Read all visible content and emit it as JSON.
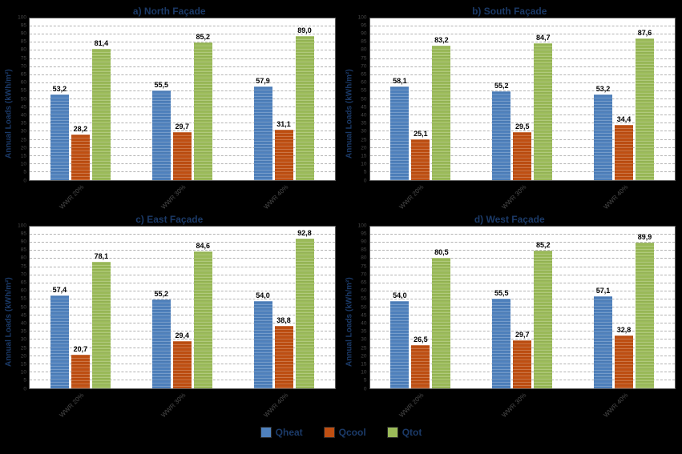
{
  "page": {
    "background": "#000000"
  },
  "colors": {
    "qheat": "#4f81bd",
    "qcool": "#bf4f12",
    "qtot": "#9bbb59",
    "title_text": "#1b3a68",
    "tick_text": "#4a4a4a"
  },
  "legend": {
    "items": [
      {
        "label": "Qheat",
        "color": "#4f81bd"
      },
      {
        "label": "Qcool",
        "color": "#bf4f12"
      },
      {
        "label": "Qtot",
        "color": "#9bbb59"
      }
    ]
  },
  "chart_data": [
    {
      "type": "bar",
      "title": "a) North Façade",
      "ylabel": "Annual Loads (kWh/m²)",
      "xlabel": "",
      "ylim": [
        0,
        100
      ],
      "ytick_step": 5,
      "grid": true,
      "categories": [
        "WWR 20%",
        "WWR 30%",
        "WWR 40%"
      ],
      "series": [
        {
          "name": "Qheat",
          "values": [
            53.2,
            55.5,
            57.9
          ]
        },
        {
          "name": "Qcool",
          "values": [
            28.2,
            29.7,
            31.1
          ]
        },
        {
          "name": "Qtot",
          "values": [
            81.4,
            85.2,
            89.0
          ]
        }
      ]
    },
    {
      "type": "bar",
      "title": "b) South Façade",
      "ylabel": "Annual Loads (kWh/m²)",
      "xlabel": "",
      "ylim": [
        0,
        100
      ],
      "ytick_step": 5,
      "grid": true,
      "categories": [
        "WWR 20%",
        "WWR 30%",
        "WWR 40%"
      ],
      "series": [
        {
          "name": "Qheat",
          "values": [
            58.1,
            55.2,
            53.2
          ]
        },
        {
          "name": "Qcool",
          "values": [
            25.1,
            29.5,
            34.4
          ]
        },
        {
          "name": "Qtot",
          "values": [
            83.2,
            84.7,
            87.6
          ]
        }
      ]
    },
    {
      "type": "bar",
      "title": "c) East Façade",
      "ylabel": "Annual Loads (kWh/m²)",
      "xlabel": "",
      "ylim": [
        0,
        100
      ],
      "ytick_step": 5,
      "grid": true,
      "categories": [
        "WWR 20%",
        "WWR 30%",
        "WWR 40%"
      ],
      "series": [
        {
          "name": "Qheat",
          "values": [
            57.4,
            55.2,
            54.0
          ]
        },
        {
          "name": "Qcool",
          "values": [
            20.7,
            29.4,
            38.8
          ]
        },
        {
          "name": "Qtot",
          "values": [
            78.1,
            84.6,
            92.8
          ]
        }
      ]
    },
    {
      "type": "bar",
      "title": "d) West Façade",
      "ylabel": "Annual Loads (kWh/m²)",
      "xlabel": "",
      "ylim": [
        0,
        100
      ],
      "ytick_step": 5,
      "grid": true,
      "categories": [
        "WWR 20%",
        "WWR 30%",
        "WWR 40%"
      ],
      "series": [
        {
          "name": "Qheat",
          "values": [
            54.0,
            55.5,
            57.1
          ]
        },
        {
          "name": "Qcool",
          "values": [
            26.5,
            29.7,
            32.8
          ]
        },
        {
          "name": "Qtot",
          "values": [
            80.5,
            85.2,
            89.9
          ]
        }
      ]
    }
  ]
}
